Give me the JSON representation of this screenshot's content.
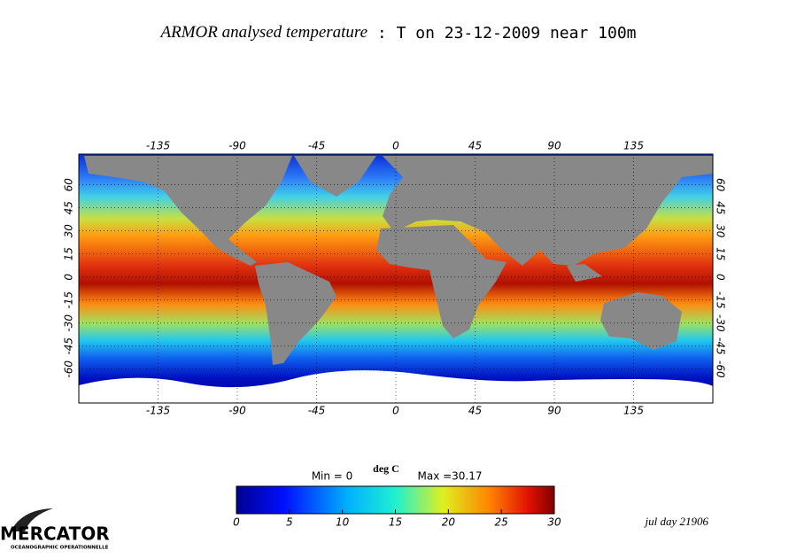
{
  "title": {
    "prefix": "ARMOR analysed temperature",
    "main": " : T on 23-12-2009 near 100m"
  },
  "map": {
    "xlim": [
      -180,
      180
    ],
    "ylim": [
      -82,
      80
    ],
    "xticks": [
      -135,
      -90,
      -45,
      0,
      45,
      90,
      135
    ],
    "yticks": [
      60,
      45,
      30,
      15,
      0,
      -15,
      -30,
      -45,
      -60
    ]
  },
  "colorbar": {
    "min_label": "Min = 0",
    "unit": "deg C",
    "max_label": "Max =30.17",
    "lim": [
      0,
      30
    ],
    "ticks": [
      0,
      5,
      10,
      15,
      20,
      25,
      30
    ]
  },
  "footer": {
    "day": "jul day 21906"
  },
  "logo": {
    "name": "MERCATOR",
    "tagline": "OCEANOGRAPHIC OPERATIONNELLE"
  }
}
